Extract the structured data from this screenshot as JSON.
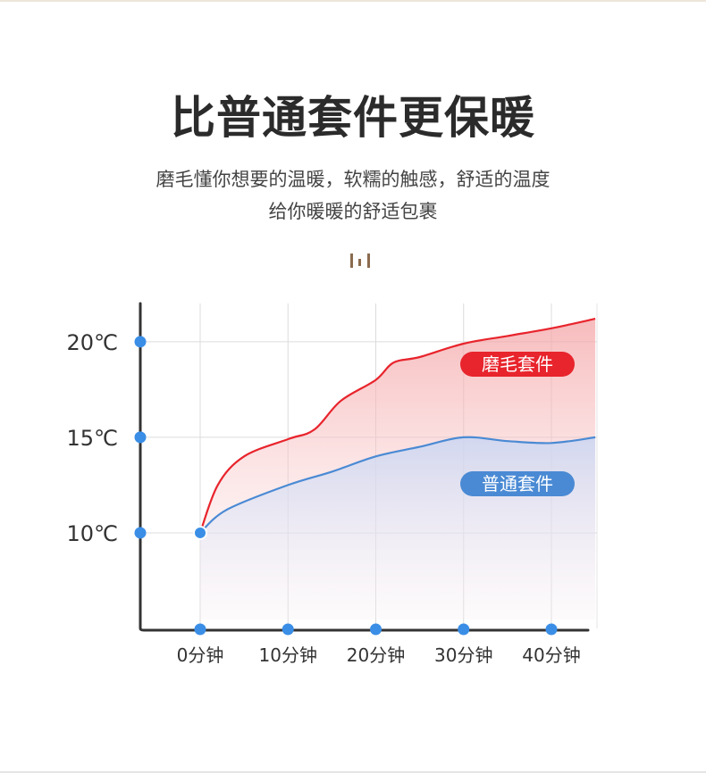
{
  "header": {
    "title": "比普通套件更保暖",
    "subtitle_line1": "磨毛懂你想要的温暖，软糯的触感，舒适的温度",
    "subtitle_line2": "给你暖暖的舒适包裹"
  },
  "chart_data": {
    "type": "line",
    "title": "",
    "xlabel": "",
    "ylabel": "",
    "x": [
      0,
      10,
      20,
      30,
      40
    ],
    "x_tick_labels": [
      "0分钟",
      "10分钟",
      "20分钟",
      "30分钟",
      "40分钟"
    ],
    "y_ticks": [
      10,
      15,
      20
    ],
    "y_tick_labels": [
      "10℃",
      "15℃",
      "20℃"
    ],
    "xlim": [
      -7,
      45
    ],
    "ylim": [
      5,
      22
    ],
    "grid": true,
    "series": [
      {
        "name": "磨毛套件",
        "color": "#e8242c",
        "x": [
          0,
          2,
          5,
          10,
          13,
          16,
          20,
          22,
          25,
          30,
          35,
          40,
          45
        ],
        "y": [
          10,
          12.5,
          14,
          14.9,
          15.4,
          16.9,
          18,
          18.9,
          19.2,
          19.9,
          20.3,
          20.7,
          21.2
        ]
      },
      {
        "name": "普通套件",
        "color": "#4a8ad4",
        "x": [
          0,
          3,
          10,
          15,
          20,
          25,
          30,
          35,
          40,
          45
        ],
        "y": [
          10,
          11.2,
          12.5,
          13.2,
          14,
          14.5,
          15,
          14.8,
          14.7,
          15
        ]
      }
    ]
  }
}
